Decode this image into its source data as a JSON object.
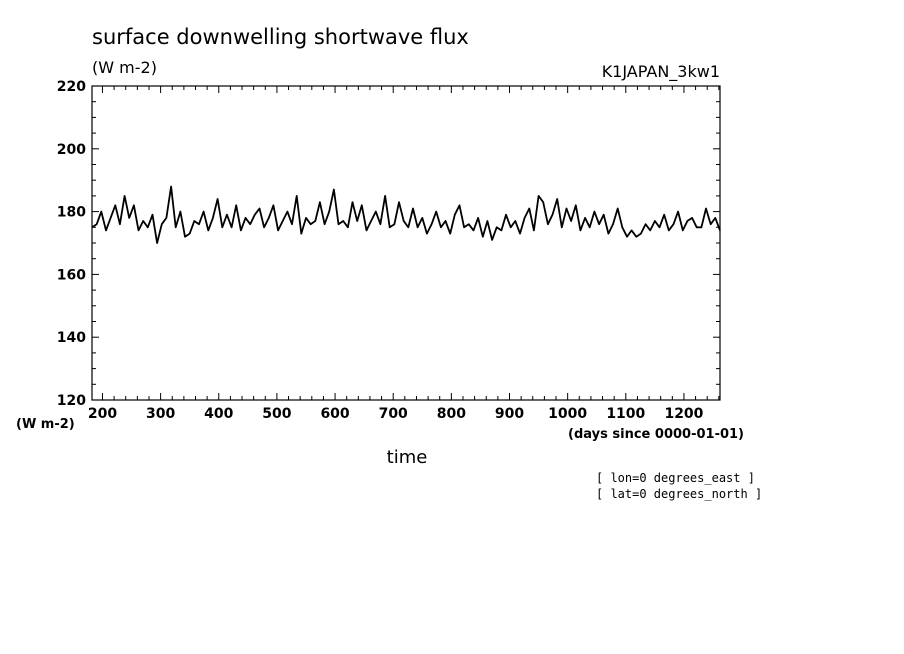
{
  "chart_data": {
    "type": "line",
    "title": "surface downwelling shortwave flux",
    "units": "(W m-2)",
    "dataset_label": "K1JAPAN_3kw1",
    "ylabel_units": "(W m-2)",
    "xlabel": "time",
    "xunits": "(days since 0000-01-01)",
    "notes": [
      "[ lon=0 degrees_east ]",
      "[ lat=0 degrees_north ]"
    ],
    "xlim": [
      182,
      1262
    ],
    "ylim": [
      120,
      220
    ],
    "xticks": [
      200,
      300,
      400,
      500,
      600,
      700,
      800,
      900,
      1000,
      1100,
      1200
    ],
    "yticks": [
      120,
      140,
      160,
      180,
      200,
      220
    ],
    "line_color": "#000000",
    "series": [
      {
        "x": [
          182,
          190,
          198,
          206,
          214,
          222,
          230,
          238,
          246,
          254,
          262,
          270,
          278,
          286,
          294,
          302,
          310,
          318,
          326,
          334,
          342,
          350,
          358,
          366,
          374,
          382,
          390,
          398,
          406,
          414,
          422,
          430,
          438,
          446,
          454,
          462,
          470,
          478,
          486,
          494,
          502,
          510,
          518,
          526,
          534,
          542,
          550,
          558,
          566,
          574,
          582,
          590,
          598,
          606,
          614,
          622,
          630,
          638,
          646,
          654,
          662,
          670,
          678,
          686,
          694,
          702,
          710,
          718,
          726,
          734,
          742,
          750,
          758,
          766,
          774,
          782,
          790,
          798,
          806,
          814,
          822,
          830,
          838,
          846,
          854,
          862,
          870,
          878,
          886,
          894,
          902,
          910,
          918,
          926,
          934,
          942,
          950,
          958,
          966,
          974,
          982,
          990,
          998,
          1006,
          1014,
          1022,
          1030,
          1038,
          1046,
          1054,
          1062,
          1070,
          1078,
          1086,
          1094,
          1102,
          1110,
          1118,
          1126,
          1134,
          1142,
          1150,
          1158,
          1166,
          1174,
          1182,
          1190,
          1198,
          1206,
          1214,
          1222,
          1230,
          1238,
          1246,
          1254,
          1262
        ],
        "y": [
          175,
          176,
          180,
          174,
          178,
          182,
          176,
          185,
          178,
          182,
          174,
          177,
          175,
          179,
          170,
          176,
          178,
          188,
          175,
          180,
          172,
          173,
          177,
          176,
          180,
          174,
          178,
          184,
          175,
          179,
          175,
          182,
          174,
          178,
          176,
          179,
          181,
          175,
          178,
          182,
          174,
          177,
          180,
          176,
          185,
          173,
          178,
          176,
          177,
          183,
          176,
          180,
          187,
          176,
          177,
          175,
          183,
          177,
          182,
          174,
          177,
          180,
          176,
          185,
          175,
          176,
          183,
          177,
          175,
          181,
          175,
          178,
          173,
          176,
          180,
          175,
          177,
          173,
          179,
          182,
          175,
          176,
          174,
          178,
          172,
          177,
          171,
          175,
          174,
          179,
          175,
          177,
          173,
          178,
          181,
          174,
          185,
          183,
          176,
          179,
          184,
          175,
          181,
          177,
          182,
          174,
          178,
          175,
          180,
          176,
          179,
          173,
          176,
          181,
          175,
          172,
          174,
          172,
          173,
          176,
          174,
          177,
          175,
          179,
          174,
          176,
          180,
          174,
          177,
          178,
          175,
          175,
          181,
          176,
          178,
          174
        ]
      }
    ]
  }
}
